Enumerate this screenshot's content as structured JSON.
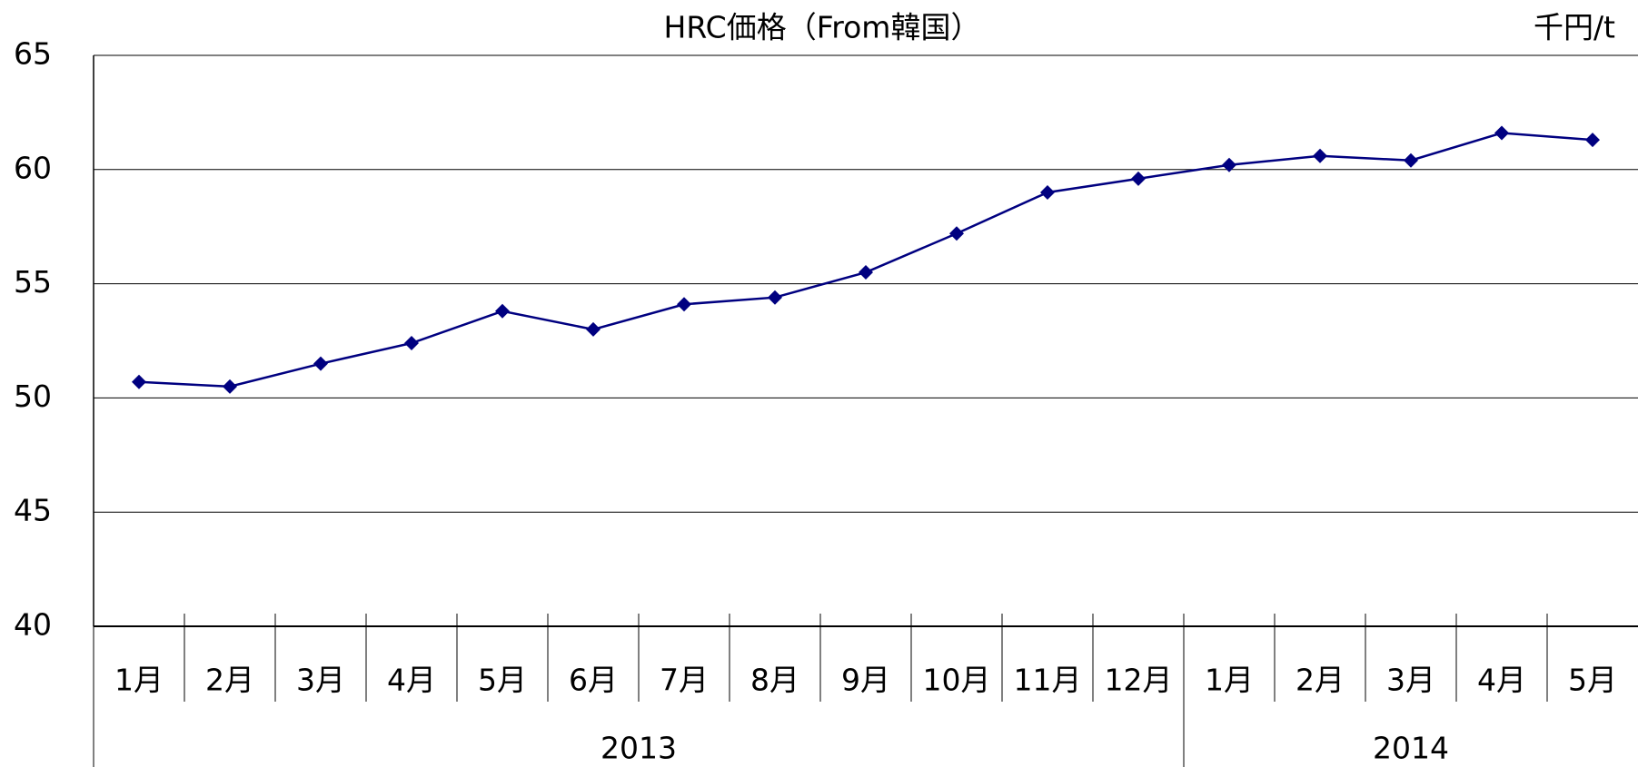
{
  "chart_data": {
    "type": "line",
    "title": "HRC価格（From韓国）",
    "unit": "千円/t",
    "categories": [
      "1月",
      "2月",
      "3月",
      "4月",
      "5月",
      "6月",
      "7月",
      "8月",
      "9月",
      "10月",
      "11月",
      "12月",
      "1月",
      "2月",
      "3月",
      "4月",
      "5月"
    ],
    "category_groups": [
      {
        "label": "2013",
        "count": 12
      },
      {
        "label": "2014",
        "count": 5
      }
    ],
    "series": [
      {
        "color": "#000080",
        "values": [
          50.7,
          50.5,
          51.5,
          52.4,
          53.8,
          53.0,
          54.1,
          54.4,
          55.5,
          57.2,
          59.0,
          59.6,
          60.2,
          60.6,
          60.4,
          61.6,
          61.3
        ]
      }
    ],
    "ylim": [
      40,
      65
    ],
    "yticks": [
      40,
      45,
      50,
      55,
      60,
      65
    ],
    "grid": true
  }
}
